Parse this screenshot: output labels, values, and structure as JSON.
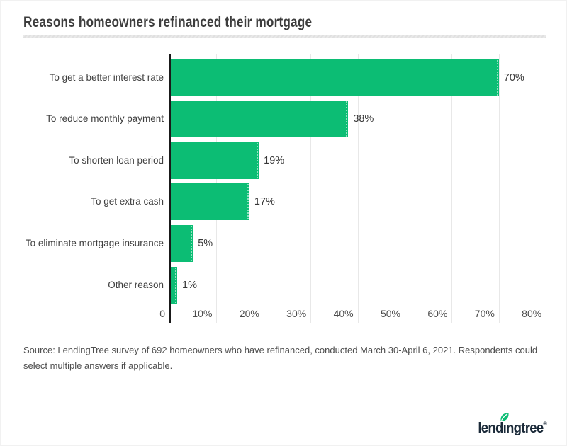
{
  "header": {
    "title": "Reasons homeowners refinanced their mortgage"
  },
  "chart_data": {
    "type": "bar",
    "orientation": "horizontal",
    "title": "Reasons homeowners refinanced their mortgage",
    "categories": [
      "To get a better interest rate",
      "To reduce monthly payment",
      "To shorten loan period",
      "To get extra cash",
      "To eliminate mortgage insurance",
      "Other reason"
    ],
    "values": [
      70,
      38,
      19,
      17,
      5,
      1
    ],
    "value_labels": [
      "70%",
      "38%",
      "19%",
      "17%",
      "5%",
      "1%"
    ],
    "x_ticks": [
      {
        "value": 0,
        "label": "0"
      },
      {
        "value": 10,
        "label": "10%"
      },
      {
        "value": 20,
        "label": "20%"
      },
      {
        "value": 30,
        "label": "30%"
      },
      {
        "value": 40,
        "label": "40%"
      },
      {
        "value": 50,
        "label": "50%"
      },
      {
        "value": 60,
        "label": "60%"
      },
      {
        "value": 70,
        "label": "70%"
      },
      {
        "value": 80,
        "label": "80%"
      }
    ],
    "xlim": [
      0,
      80
    ],
    "grid": true,
    "legend": false,
    "bar_color": "#0cbd74",
    "axis_color": "#1a1a1a",
    "gridline_color": "#e8e8e8"
  },
  "source": {
    "lines": [
      "Source: LendingTree survey of 692 homeowners who have refinanced, conducted March 30-April 6, 2021. Respondents could",
      "select multiple answers if applicable."
    ]
  },
  "logo": {
    "brand": "lendingtree",
    "registered_mark": "®",
    "leaf_icon": "leaf-icon",
    "text_color": "#1b2a39",
    "leaf_color": "#0cbd74"
  }
}
